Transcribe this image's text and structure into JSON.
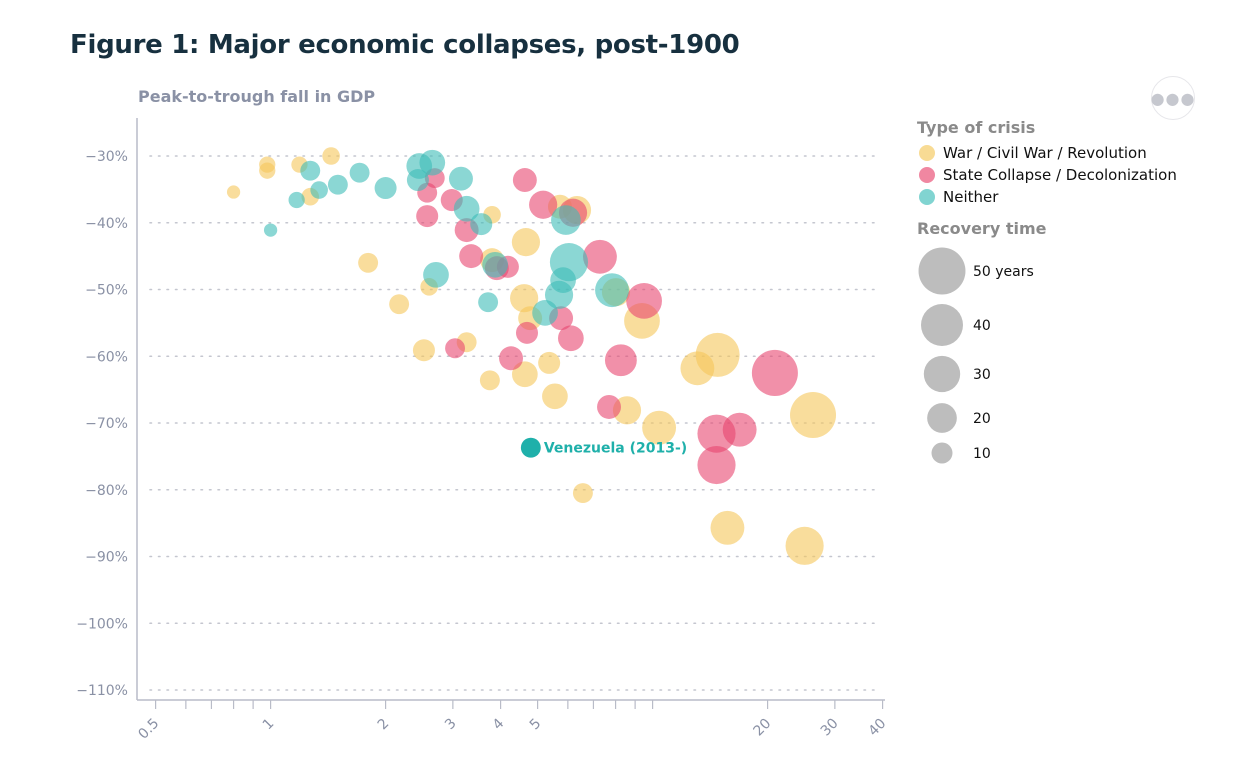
{
  "title": "Figure 1: Major economic collapses, post-1900",
  "more_button_icon": "ellipsis-icon",
  "chart_data": {
    "type": "scatter",
    "title": "Figure 1: Major economic collapses, post-1900",
    "ylabel": "Peak-to-trough fall in GDP",
    "xlabel": "",
    "x_scale": "log",
    "xlim": [
      0.45,
      40.5
    ],
    "ylim": [
      -112,
      -27
    ],
    "x_ticks": [
      {
        "v": 0.5,
        "label": "0.5"
      },
      {
        "v": 1,
        "label": "1"
      },
      {
        "v": 2,
        "label": "2"
      },
      {
        "v": 3,
        "label": "3"
      },
      {
        "v": 4,
        "label": "4"
      },
      {
        "v": 5,
        "label": "5"
      },
      {
        "v": 20,
        "label": "20"
      },
      {
        "v": 30,
        "label": "30"
      },
      {
        "v": 40,
        "label": "40"
      }
    ],
    "x_minor_ticks": [
      0.6,
      0.7,
      0.8,
      0.9,
      6,
      7,
      8,
      9,
      10
    ],
    "y_ticks": [
      {
        "v": -30,
        "label": "−30%"
      },
      {
        "v": -40,
        "label": "−40%"
      },
      {
        "v": -50,
        "label": "−50%"
      },
      {
        "v": -60,
        "label": "−60%"
      },
      {
        "v": -70,
        "label": "−70%"
      },
      {
        "v": -80,
        "label": "−80%"
      },
      {
        "v": -90,
        "label": "−90%"
      },
      {
        "v": -100,
        "label": "−100%"
      },
      {
        "v": -110,
        "label": "−110%"
      }
    ],
    "grid": "horizontal-dotted",
    "legend": {
      "placement": "right",
      "type_title": "Type of crisis",
      "types": [
        {
          "key": "W",
          "label": "War / Civil War / Revolution",
          "color": "#f5c75a"
        },
        {
          "key": "S",
          "label": "State Collapse / Decolonization",
          "color": "#e8466f"
        },
        {
          "key": "N",
          "label": "Neither",
          "color": "#3ebdb8"
        }
      ],
      "size_title": "Recovery time",
      "sizes": [
        {
          "v": 50,
          "label": "50 years"
        },
        {
          "v": 40,
          "label": "40"
        },
        {
          "v": 30,
          "label": "30"
        },
        {
          "v": 20,
          "label": "20"
        },
        {
          "v": 10,
          "label": "10"
        }
      ],
      "size_color": "#bdbdbd"
    },
    "annotation": {
      "label": "Venezuela (2013-)",
      "x": 4.8,
      "y": -73.7,
      "years": 9,
      "type": "N",
      "color": "#1fb0aa"
    },
    "points": [
      {
        "t": "W",
        "x": 0.8,
        "y": -35.4,
        "r": 4
      },
      {
        "t": "W",
        "x": 0.98,
        "y": -31.3,
        "r": 6
      },
      {
        "t": "W",
        "x": 0.98,
        "y": -32.2,
        "r": 6
      },
      {
        "t": "W",
        "x": 1.19,
        "y": -31.3,
        "r": 6
      },
      {
        "t": "W",
        "x": 1.44,
        "y": -30.0,
        "r": 7
      },
      {
        "t": "W",
        "x": 1.27,
        "y": -36.1,
        "r": 7
      },
      {
        "t": "W",
        "x": 1.8,
        "y": -46.0,
        "r": 9
      },
      {
        "t": "W",
        "x": 2.17,
        "y": -52.2,
        "r": 9
      },
      {
        "t": "W",
        "x": 2.6,
        "y": -49.6,
        "r": 7
      },
      {
        "t": "W",
        "x": 2.52,
        "y": -59.1,
        "r": 11
      },
      {
        "t": "W",
        "x": 3.26,
        "y": -57.9,
        "r": 9
      },
      {
        "t": "W",
        "x": 3.75,
        "y": -63.6,
        "r": 9
      },
      {
        "t": "W",
        "x": 3.8,
        "y": -38.8,
        "r": 7
      },
      {
        "t": "W",
        "x": 4.66,
        "y": -42.9,
        "r": 18
      },
      {
        "t": "W",
        "x": 3.8,
        "y": -45.6,
        "r": 13
      },
      {
        "t": "W",
        "x": 4.61,
        "y": -51.3,
        "r": 18
      },
      {
        "t": "W",
        "x": 4.78,
        "y": -54.3,
        "r": 13
      },
      {
        "t": "W",
        "x": 4.63,
        "y": -62.7,
        "r": 15
      },
      {
        "t": "W",
        "x": 5.36,
        "y": -61.0,
        "r": 11
      },
      {
        "t": "W",
        "x": 5.55,
        "y": -66.0,
        "r": 15
      },
      {
        "t": "W",
        "x": 5.72,
        "y": -37.6,
        "r": 13
      },
      {
        "t": "W",
        "x": 6.34,
        "y": -38.1,
        "r": 18
      },
      {
        "t": "W",
        "x": 8.02,
        "y": -50.4,
        "r": 18
      },
      {
        "t": "W",
        "x": 9.38,
        "y": -54.7,
        "r": 29
      },
      {
        "t": "W",
        "x": 8.57,
        "y": -68.1,
        "r": 18
      },
      {
        "t": "W",
        "x": 10.4,
        "y": -70.7,
        "r": 26
      },
      {
        "t": "W",
        "x": 13.1,
        "y": -61.8,
        "r": 26
      },
      {
        "t": "W",
        "x": 14.8,
        "y": -59.8,
        "r": 44
      },
      {
        "t": "W",
        "x": 15.7,
        "y": -85.7,
        "r": 26
      },
      {
        "t": "W",
        "x": 26.3,
        "y": -68.8,
        "r": 48
      },
      {
        "t": "W",
        "x": 25.0,
        "y": -88.4,
        "r": 33
      },
      {
        "t": "W",
        "x": 6.57,
        "y": -80.5,
        "r": 9
      },
      {
        "t": "S",
        "x": 4.63,
        "y": -33.6,
        "r": 13
      },
      {
        "t": "S",
        "x": 5.17,
        "y": -37.3,
        "r": 18
      },
      {
        "t": "S",
        "x": 6.19,
        "y": -38.5,
        "r": 18
      },
      {
        "t": "S",
        "x": 2.57,
        "y": -35.5,
        "r": 9
      },
      {
        "t": "S",
        "x": 2.57,
        "y": -39.0,
        "r": 11
      },
      {
        "t": "S",
        "x": 2.69,
        "y": -33.3,
        "r": 9
      },
      {
        "t": "S",
        "x": 2.98,
        "y": -36.6,
        "r": 11
      },
      {
        "t": "S",
        "x": 3.26,
        "y": -41.1,
        "r": 13
      },
      {
        "t": "S",
        "x": 3.35,
        "y": -45.0,
        "r": 13
      },
      {
        "t": "S",
        "x": 3.91,
        "y": -46.8,
        "r": 13
      },
      {
        "t": "S",
        "x": 4.18,
        "y": -46.6,
        "r": 11
      },
      {
        "t": "S",
        "x": 4.69,
        "y": -56.5,
        "r": 11
      },
      {
        "t": "S",
        "x": 5.76,
        "y": -54.3,
        "r": 13
      },
      {
        "t": "S",
        "x": 6.11,
        "y": -57.3,
        "r": 15
      },
      {
        "t": "S",
        "x": 7.28,
        "y": -45.1,
        "r": 26
      },
      {
        "t": "S",
        "x": 9.5,
        "y": -51.7,
        "r": 29
      },
      {
        "t": "S",
        "x": 8.26,
        "y": -60.6,
        "r": 23
      },
      {
        "t": "S",
        "x": 7.69,
        "y": -67.6,
        "r": 13
      },
      {
        "t": "S",
        "x": 3.04,
        "y": -58.8,
        "r": 9
      },
      {
        "t": "S",
        "x": 4.26,
        "y": -60.3,
        "r": 13
      },
      {
        "t": "S",
        "x": 14.7,
        "y": -71.6,
        "r": 33
      },
      {
        "t": "S",
        "x": 16.9,
        "y": -71.0,
        "r": 26
      },
      {
        "t": "S",
        "x": 14.7,
        "y": -76.3,
        "r": 33
      },
      {
        "t": "S",
        "x": 20.9,
        "y": -62.5,
        "r": 48
      },
      {
        "t": "N",
        "x": 1.0,
        "y": -41.1,
        "r": 4
      },
      {
        "t": "N",
        "x": 1.17,
        "y": -36.6,
        "r": 6
      },
      {
        "t": "N",
        "x": 1.27,
        "y": -32.2,
        "r": 9
      },
      {
        "t": "N",
        "x": 1.34,
        "y": -35.1,
        "r": 7
      },
      {
        "t": "N",
        "x": 1.5,
        "y": -34.3,
        "r": 9
      },
      {
        "t": "N",
        "x": 1.71,
        "y": -32.5,
        "r": 9
      },
      {
        "t": "N",
        "x": 2.0,
        "y": -34.8,
        "r": 11
      },
      {
        "t": "N",
        "x": 2.45,
        "y": -31.5,
        "r": 15
      },
      {
        "t": "N",
        "x": 2.65,
        "y": -31.0,
        "r": 15
      },
      {
        "t": "N",
        "x": 2.43,
        "y": -33.6,
        "r": 11
      },
      {
        "t": "N",
        "x": 3.15,
        "y": -33.4,
        "r": 13
      },
      {
        "t": "N",
        "x": 3.26,
        "y": -37.9,
        "r": 15
      },
      {
        "t": "N",
        "x": 3.56,
        "y": -40.2,
        "r": 11
      },
      {
        "t": "N",
        "x": 2.71,
        "y": -47.8,
        "r": 15
      },
      {
        "t": "N",
        "x": 3.71,
        "y": -51.9,
        "r": 9
      },
      {
        "t": "N",
        "x": 3.87,
        "y": -46.3,
        "r": 15
      },
      {
        "t": "N",
        "x": 5.93,
        "y": -39.6,
        "r": 20
      },
      {
        "t": "N",
        "x": 6.04,
        "y": -45.9,
        "r": 33
      },
      {
        "t": "N",
        "x": 5.83,
        "y": -48.6,
        "r": 15
      },
      {
        "t": "N",
        "x": 5.69,
        "y": -50.8,
        "r": 18
      },
      {
        "t": "N",
        "x": 5.23,
        "y": -53.5,
        "r": 15
      },
      {
        "t": "N",
        "x": 7.83,
        "y": -50.1,
        "r": 26
      }
    ]
  }
}
